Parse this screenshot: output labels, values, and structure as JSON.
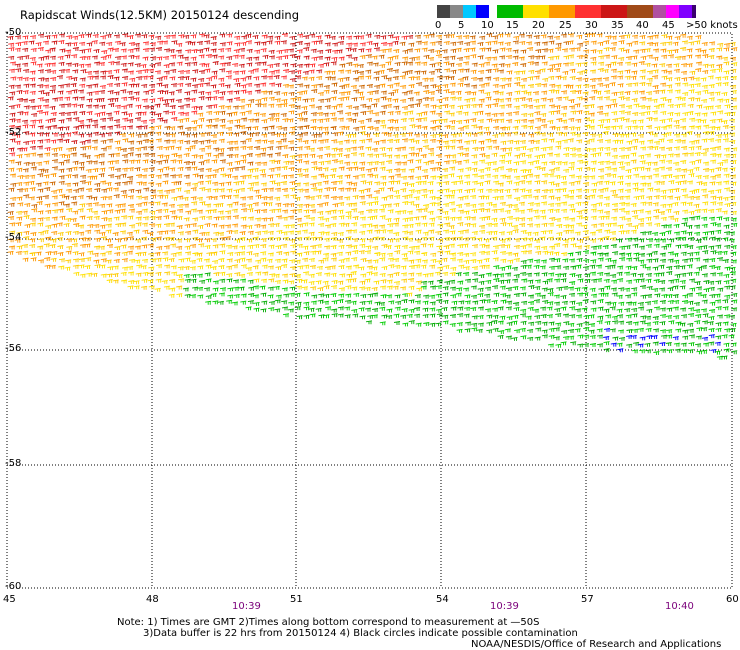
{
  "title": "Rapidscat Winds(12.5KM) 20150124 descending",
  "legend": {
    "labels": [
      "0",
      "5",
      "10",
      "15",
      "20",
      "25",
      "30",
      "35",
      "40",
      "45",
      ">50 knots"
    ],
    "colors": [
      "#444444",
      "#888888",
      "#00c8ff",
      "#0000ff",
      "#00bb00",
      "#ffe000",
      "#ff9900",
      "#ff3030",
      "#cc1616",
      "#a04a18",
      "#b050a0",
      "#ff00ff",
      "#8000ff",
      "#3a0070"
    ]
  },
  "map": {
    "lat_labels": [
      "-50",
      "-52",
      "-54",
      "-56",
      "-58",
      "-60"
    ],
    "lon_labels": [
      "45",
      "48",
      "51",
      "54",
      "57",
      "60"
    ],
    "times": [
      "10:39",
      "10:39",
      "10:40"
    ]
  },
  "notes": [
    "Note: 1) Times are GMT 2)Times along bottom correspond to measurement at —50S",
    "3)Data buffer is 22 hrs from 20150124 4) Black circles indicate possible contamination",
    "NOAA/NESDIS/Office of Research and Applications"
  ]
}
